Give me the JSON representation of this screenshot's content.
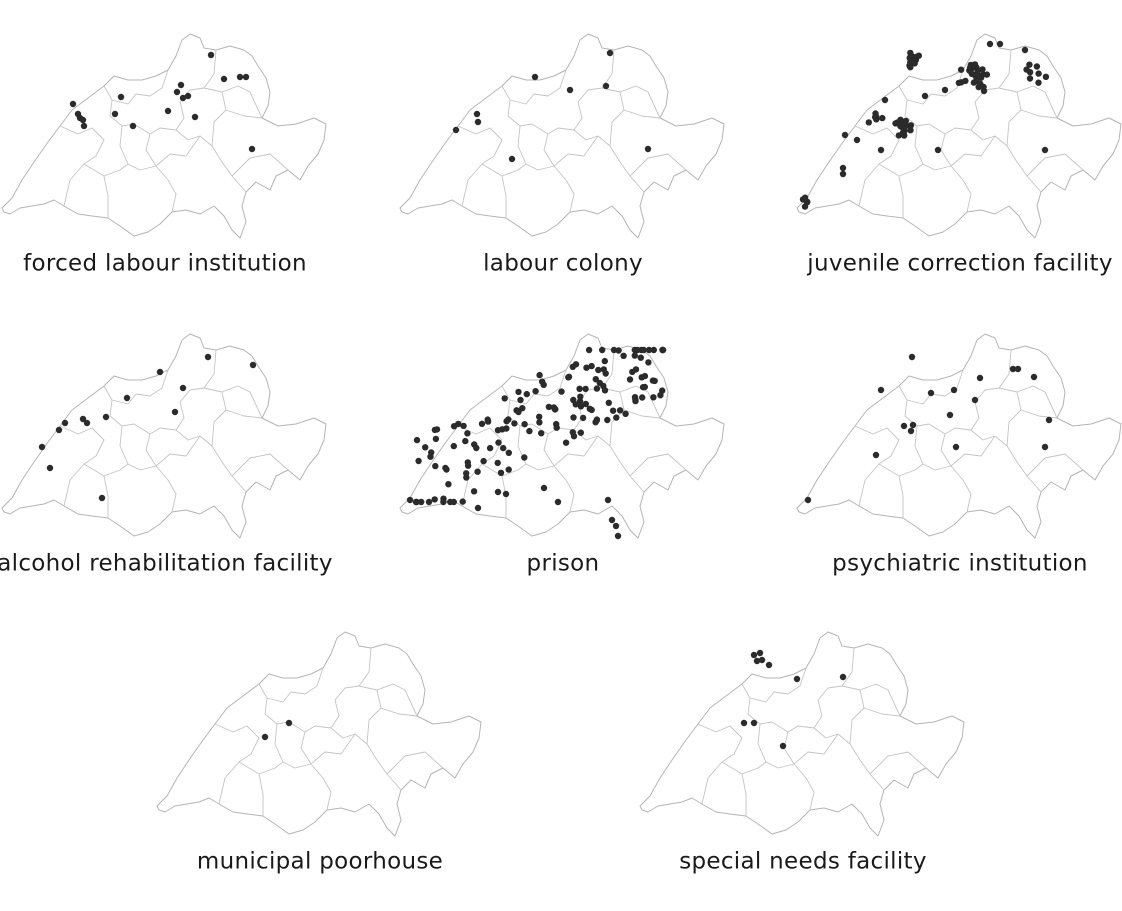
{
  "panels": [
    {
      "label": "forced labour institution"
    },
    {
      "label": "labour colony"
    },
    {
      "label": "juvenile correction facility"
    },
    {
      "label": "alcohol rehabilitation facility"
    },
    {
      "label": "prison"
    },
    {
      "label": "psychiatric institution"
    },
    {
      "label": "municipal poorhouse"
    },
    {
      "label": "special needs facility"
    }
  ]
}
